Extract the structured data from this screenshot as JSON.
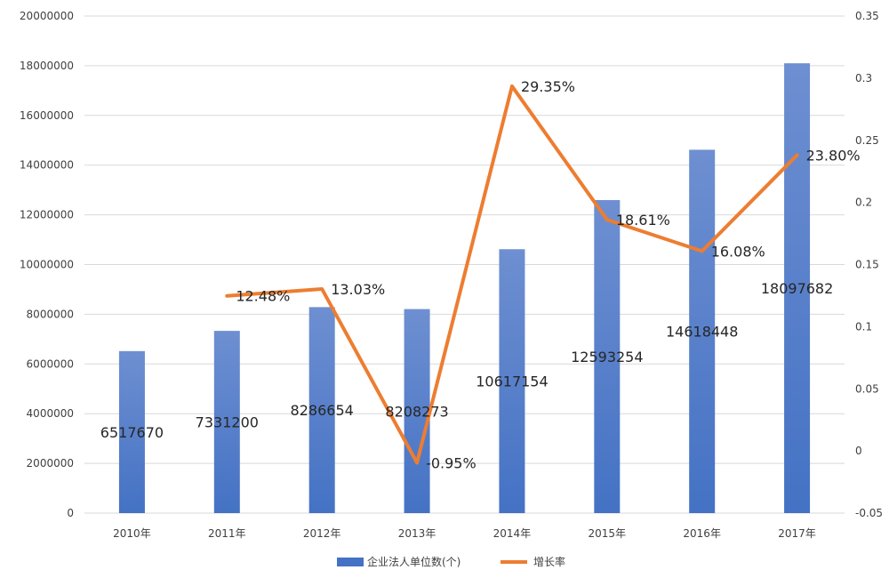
{
  "chart_data": {
    "type": "bar",
    "categories": [
      "2010年",
      "2011年",
      "2012年",
      "2013年",
      "2014年",
      "2015年",
      "2016年",
      "2017年"
    ],
    "series": [
      {
        "name": "企业法人单位数(个)",
        "kind": "bar",
        "axis": "left",
        "color": "#4472C4",
        "values": [
          6517670,
          7331200,
          8286654,
          8208273,
          10617154,
          12593254,
          14618448,
          18097682
        ],
        "labels": [
          "6517670",
          "7331200",
          "8286654",
          "8208273",
          "10617154",
          "12593254",
          "14618448",
          "18097682"
        ]
      },
      {
        "name": "增长率",
        "kind": "line",
        "axis": "right",
        "color": "#ED7D31",
        "values": [
          null,
          0.1248,
          0.1303,
          -0.0095,
          0.2935,
          0.1861,
          0.1608,
          0.238
        ],
        "labels": [
          "",
          "12.48%",
          "13.03%",
          "-0.95%",
          "29.35%",
          "18.61%",
          "16.08%",
          "23.80%"
        ]
      }
    ],
    "y_left": {
      "ylim": [
        0,
        20000000
      ],
      "ticks": [
        "0",
        "2000000",
        "4000000",
        "6000000",
        "8000000",
        "10000000",
        "12000000",
        "14000000",
        "16000000",
        "18000000",
        "20000000"
      ]
    },
    "y_right": {
      "ylim": [
        -0.05,
        0.35
      ],
      "ticks": [
        "-0.05",
        "0",
        "0.05",
        "0.1",
        "0.15",
        "0.2",
        "0.25",
        "0.3",
        "0.35"
      ]
    },
    "grid": true,
    "legend": "bottom"
  }
}
